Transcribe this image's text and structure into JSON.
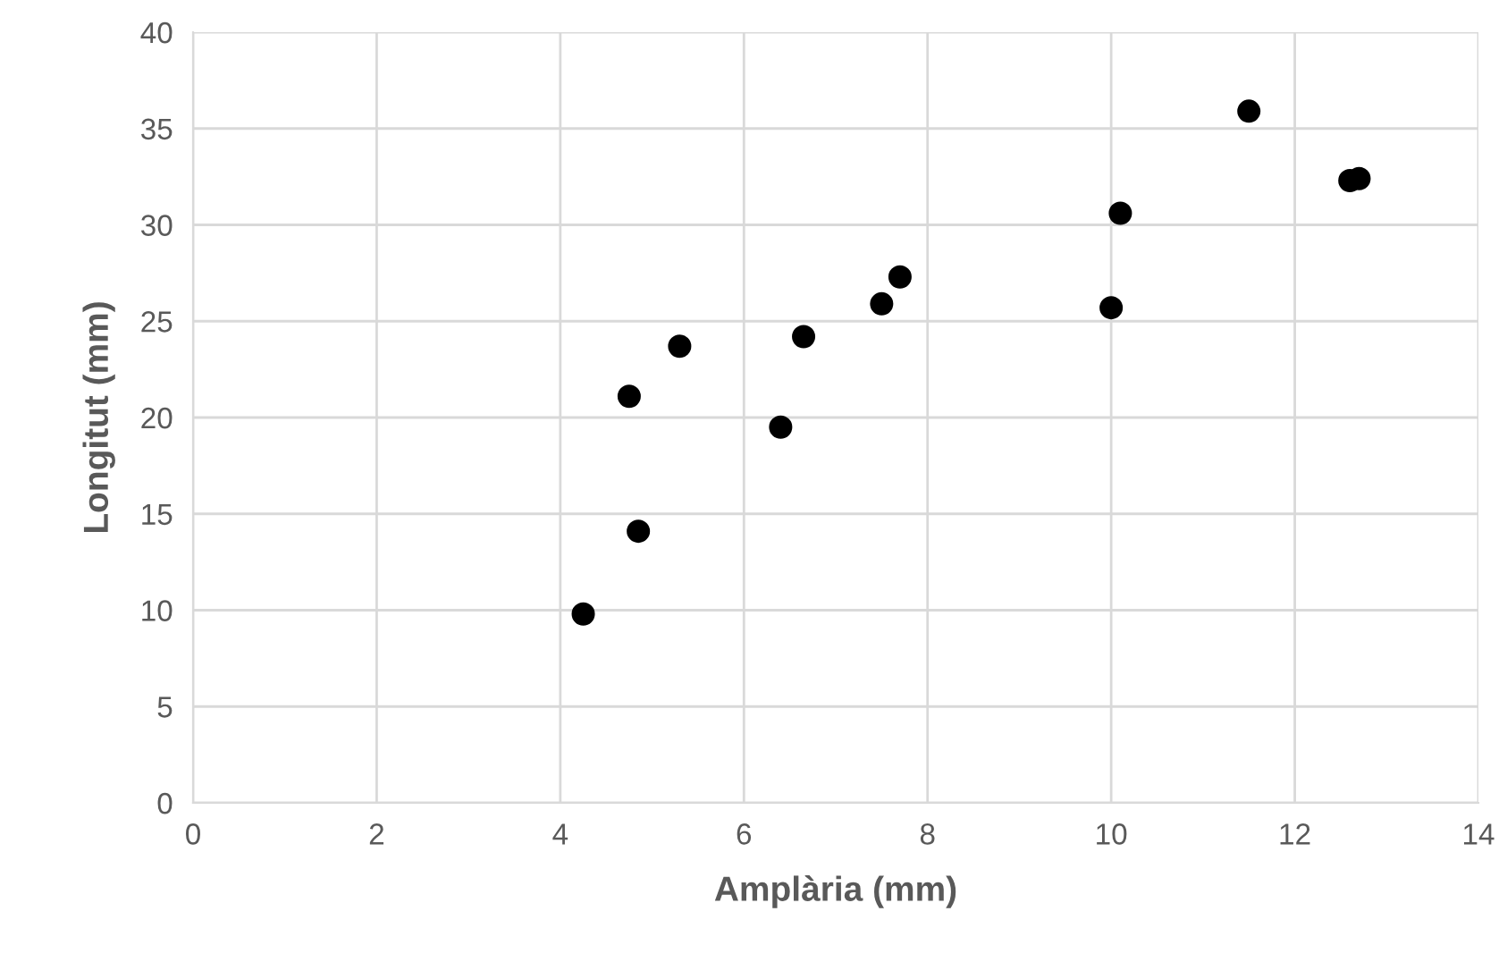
{
  "chart_data": {
    "type": "scatter",
    "xlabel": "Amplària (mm)",
    "ylabel": "Longitut (mm)",
    "series": [
      {
        "color": "#000000",
        "x": [
          4.25,
          4.75,
          4.85,
          5.3,
          6.4,
          6.65,
          7.5,
          7.7,
          10.0,
          10.1,
          11.5,
          12.6,
          12.7
        ],
        "values": [
          9.8,
          21.1,
          14.1,
          23.7,
          19.5,
          24.2,
          25.9,
          27.3,
          25.7,
          30.6,
          35.9,
          32.3,
          32.4
        ]
      }
    ],
    "xlim": [
      0,
      14
    ],
    "xticks": [
      0,
      2,
      4,
      6,
      8,
      10,
      12,
      14
    ],
    "ylim": [
      0,
      40
    ],
    "yticks": [
      0,
      5,
      10,
      15,
      20,
      25,
      30,
      35,
      40
    ],
    "grid": true,
    "marker": "circle"
  }
}
